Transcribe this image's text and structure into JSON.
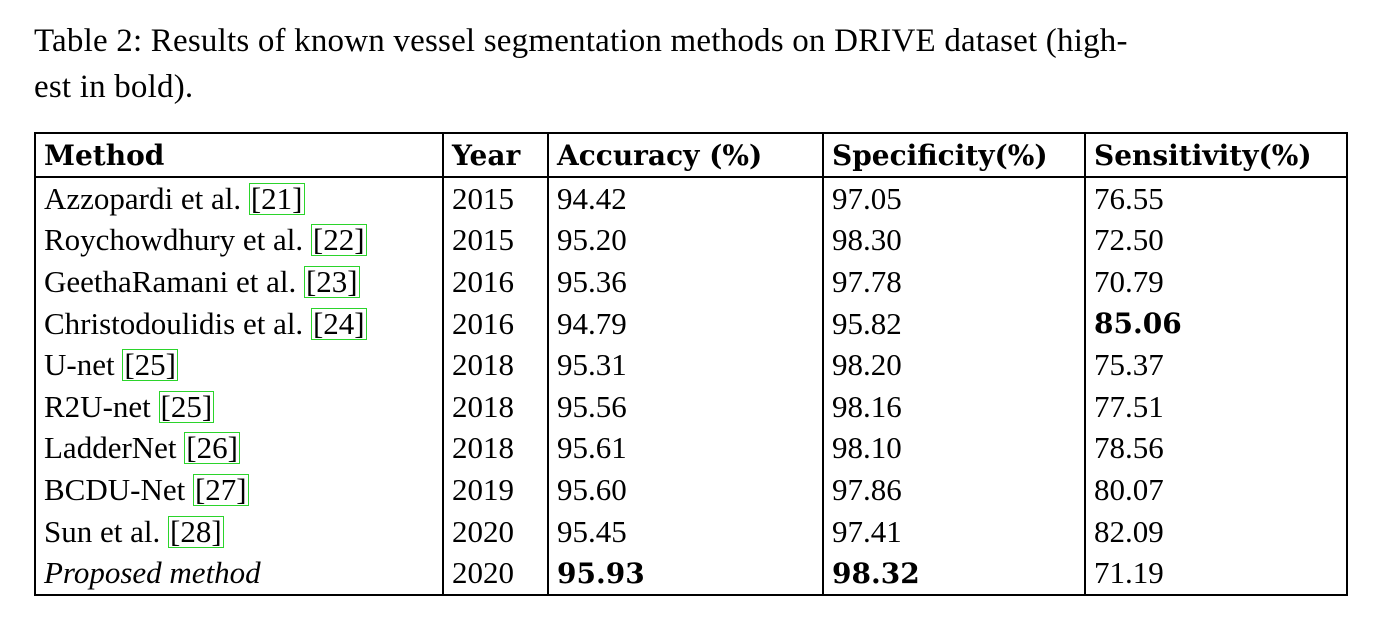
{
  "caption": {
    "line1": "Table 2: Results of known vessel segmentation methods on DRIVE dataset (high-",
    "line2": "est in bold)."
  },
  "table": {
    "headers": {
      "method": "Method",
      "year": "Year",
      "accuracy": "Accuracy (%)",
      "specificity": "Specificity(%)",
      "sensitivity": "Sensitivity(%)"
    },
    "rows": [
      {
        "method": "Azzopardi et al.",
        "cite": "[21]",
        "year": "2015",
        "accuracy": "94.42",
        "specificity": "97.05",
        "sensitivity": "76.55"
      },
      {
        "method": "Roychowdhury et al.",
        "cite": "[22]",
        "year": "2015",
        "accuracy": "95.20",
        "specificity": "98.30",
        "sensitivity": "72.50"
      },
      {
        "method": "GeethaRamani et al.",
        "cite": "[23]",
        "year": "2016",
        "accuracy": "95.36",
        "specificity": "97.78",
        "sensitivity": "70.79"
      },
      {
        "method": "Christodoulidis et al.",
        "cite": "[24]",
        "year": "2016",
        "accuracy": "94.79",
        "specificity": "95.82",
        "sensitivity": "85.06"
      },
      {
        "method": "U-net",
        "cite": "[25]",
        "year": "2018",
        "accuracy": "95.31",
        "specificity": "98.20",
        "sensitivity": "75.37"
      },
      {
        "method": "R2U-net",
        "cite": "[25]",
        "year": "2018",
        "accuracy": "95.56",
        "specificity": "98.16",
        "sensitivity": "77.51"
      },
      {
        "method": "LadderNet",
        "cite": "[26]",
        "year": "2018",
        "accuracy": "95.61",
        "specificity": "98.10",
        "sensitivity": "78.56"
      },
      {
        "method": "BCDU-Net",
        "cite": "[27]",
        "year": "2019",
        "accuracy": "95.60",
        "specificity": "97.86",
        "sensitivity": "80.07"
      },
      {
        "method": "Sun et al.",
        "cite": "[28]",
        "year": "2020",
        "accuracy": "95.45",
        "specificity": "97.41",
        "sensitivity": "82.09"
      },
      {
        "method": "Proposed method",
        "cite": "",
        "year": "2020",
        "accuracy": "95.93",
        "specificity": "98.32",
        "sensitivity": "71.19"
      }
    ]
  },
  "colors": {
    "citation_box": "#2bd42b",
    "text": "#000000",
    "background": "#ffffff"
  }
}
